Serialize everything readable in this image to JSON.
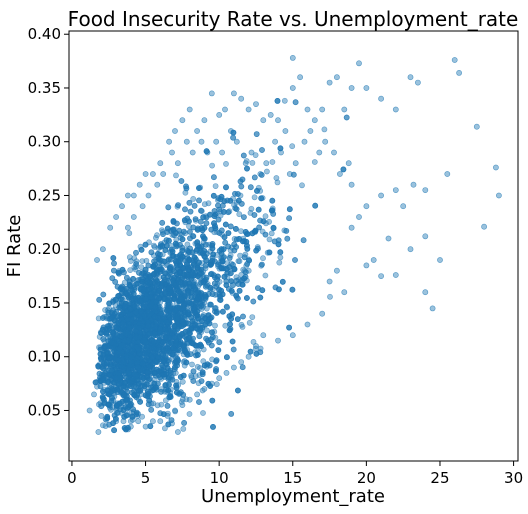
{
  "chart_data": {
    "type": "scatter",
    "title": "Food Insecurity Rate vs. Unemployment_rate",
    "xlabel": "Unemployment_rate",
    "ylabel": "FI Rate",
    "xlim": [
      -0.2,
      30.3
    ],
    "ylim": [
      0.003,
      0.403
    ],
    "xticks": [
      0,
      5,
      10,
      15,
      20,
      25,
      30
    ],
    "xtick_labels": [
      "0",
      "5",
      "10",
      "15",
      "20",
      "25",
      "30"
    ],
    "yticks": [
      0.05,
      0.1,
      0.15,
      0.2,
      0.25,
      0.3,
      0.35,
      0.4
    ],
    "ytick_labels": [
      "0.05",
      "0.10",
      "0.15",
      "0.20",
      "0.25",
      "0.30",
      "0.35",
      "0.40"
    ],
    "grid": false,
    "marker_color": "#1f77b4",
    "marker_alpha": 0.45,
    "points": [
      [
        1.2,
        0.05
      ],
      [
        1.5,
        0.065
      ],
      [
        1.8,
        0.03
      ],
      [
        2.0,
        0.045
      ],
      [
        2.2,
        0.06
      ],
      [
        2.5,
        0.055
      ],
      [
        2.8,
        0.07
      ],
      [
        3.0,
        0.04
      ],
      [
        3.2,
        0.08
      ],
      [
        3.5,
        0.05
      ],
      [
        1.7,
        0.19
      ],
      [
        2.1,
        0.2
      ],
      [
        2.6,
        0.22
      ],
      [
        3.0,
        0.23
      ],
      [
        3.4,
        0.24
      ],
      [
        3.8,
        0.25
      ],
      [
        4.2,
        0.25
      ],
      [
        4.6,
        0.26
      ],
      [
        5.0,
        0.27
      ],
      [
        5.5,
        0.27
      ],
      [
        6.0,
        0.28
      ],
      [
        6.6,
        0.3
      ],
      [
        7.0,
        0.31
      ],
      [
        7.5,
        0.32
      ],
      [
        8.0,
        0.33
      ],
      [
        8.5,
        0.31
      ],
      [
        9.0,
        0.32
      ],
      [
        9.5,
        0.345
      ],
      [
        10.0,
        0.325
      ],
      [
        10.4,
        0.33
      ],
      [
        11.0,
        0.345
      ],
      [
        11.5,
        0.34
      ],
      [
        12.0,
        0.33
      ],
      [
        12.5,
        0.335
      ],
      [
        13.0,
        0.32
      ],
      [
        13.5,
        0.325
      ],
      [
        14.0,
        0.32
      ],
      [
        14.5,
        0.31
      ],
      [
        15.0,
        0.35
      ],
      [
        15.5,
        0.36
      ],
      [
        15.0,
        0.378
      ],
      [
        16.0,
        0.33
      ],
      [
        16.5,
        0.32
      ],
      [
        17.0,
        0.33
      ],
      [
        17.5,
        0.355
      ],
      [
        18.0,
        0.36
      ],
      [
        18.5,
        0.33
      ],
      [
        19.0,
        0.35
      ],
      [
        19.5,
        0.373
      ],
      [
        20.0,
        0.35
      ],
      [
        21.0,
        0.34
      ],
      [
        22.0,
        0.33
      ],
      [
        23.0,
        0.36
      ],
      [
        23.5,
        0.355
      ],
      [
        26.0,
        0.376
      ],
      [
        26.3,
        0.364
      ],
      [
        27.5,
        0.314
      ],
      [
        28.8,
        0.276
      ],
      [
        29.0,
        0.25
      ],
      [
        28.0,
        0.221
      ],
      [
        25.5,
        0.27
      ],
      [
        24.0,
        0.255
      ],
      [
        24.0,
        0.212
      ],
      [
        23.0,
        0.2
      ],
      [
        25.0,
        0.19
      ],
      [
        22.0,
        0.176
      ],
      [
        24.0,
        0.16
      ],
      [
        24.5,
        0.145
      ],
      [
        21.0,
        0.175
      ],
      [
        20.0,
        0.185
      ],
      [
        19.0,
        0.22
      ],
      [
        18.5,
        0.16
      ],
      [
        18.0,
        0.18
      ],
      [
        17.5,
        0.17
      ],
      [
        17.0,
        0.14
      ],
      [
        16.0,
        0.13
      ],
      [
        15.0,
        0.12
      ],
      [
        14.0,
        0.115
      ],
      [
        13.0,
        0.12
      ],
      [
        12.5,
        0.11
      ],
      [
        12.0,
        0.1
      ],
      [
        11.5,
        0.095
      ],
      [
        11.0,
        0.09
      ],
      [
        10.5,
        0.085
      ],
      [
        10.0,
        0.08
      ],
      [
        9.5,
        0.075
      ],
      [
        9.0,
        0.07
      ],
      [
        8.5,
        0.065
      ],
      [
        8.0,
        0.06
      ],
      [
        7.5,
        0.055
      ],
      [
        7.0,
        0.05
      ],
      [
        6.5,
        0.045
      ],
      [
        6.0,
        0.04
      ],
      [
        5.5,
        0.04
      ],
      [
        5.0,
        0.035
      ],
      [
        4.5,
        0.04
      ],
      [
        4.0,
        0.035
      ],
      [
        3.5,
        0.04
      ],
      [
        7.2,
        0.03
      ],
      [
        6.8,
        0.038
      ],
      [
        20.5,
        0.19
      ],
      [
        21.5,
        0.21
      ],
      [
        22.5,
        0.24
      ],
      [
        23.2,
        0.26
      ],
      [
        22.0,
        0.255
      ],
      [
        21.0,
        0.25
      ],
      [
        20.0,
        0.24
      ],
      [
        19.5,
        0.23
      ],
      [
        19.0,
        0.26
      ],
      [
        18.8,
        0.28
      ],
      [
        18.2,
        0.27
      ],
      [
        17.8,
        0.29
      ],
      [
        17.2,
        0.3
      ],
      [
        16.8,
        0.29
      ],
      [
        16.2,
        0.31
      ],
      [
        15.8,
        0.3
      ],
      [
        15.2,
        0.28
      ],
      [
        14.8,
        0.27
      ],
      [
        14.2,
        0.29
      ],
      [
        13.8,
        0.3
      ],
      [
        13.2,
        0.28
      ],
      [
        12.8,
        0.27
      ],
      [
        12.2,
        0.29
      ],
      [
        11.8,
        0.28
      ],
      [
        11.2,
        0.3
      ],
      [
        10.8,
        0.31
      ],
      [
        10.2,
        0.29
      ],
      [
        9.8,
        0.3
      ],
      [
        9.2,
        0.29
      ],
      [
        8.8,
        0.3
      ],
      [
        8.2,
        0.29
      ],
      [
        7.8,
        0.3
      ],
      [
        7.2,
        0.28
      ],
      [
        6.8,
        0.29
      ],
      [
        6.2,
        0.27
      ],
      [
        5.8,
        0.26
      ],
      [
        5.2,
        0.25
      ],
      [
        4.8,
        0.24
      ],
      [
        4.2,
        0.23
      ],
      [
        3.8,
        0.22
      ]
    ]
  }
}
